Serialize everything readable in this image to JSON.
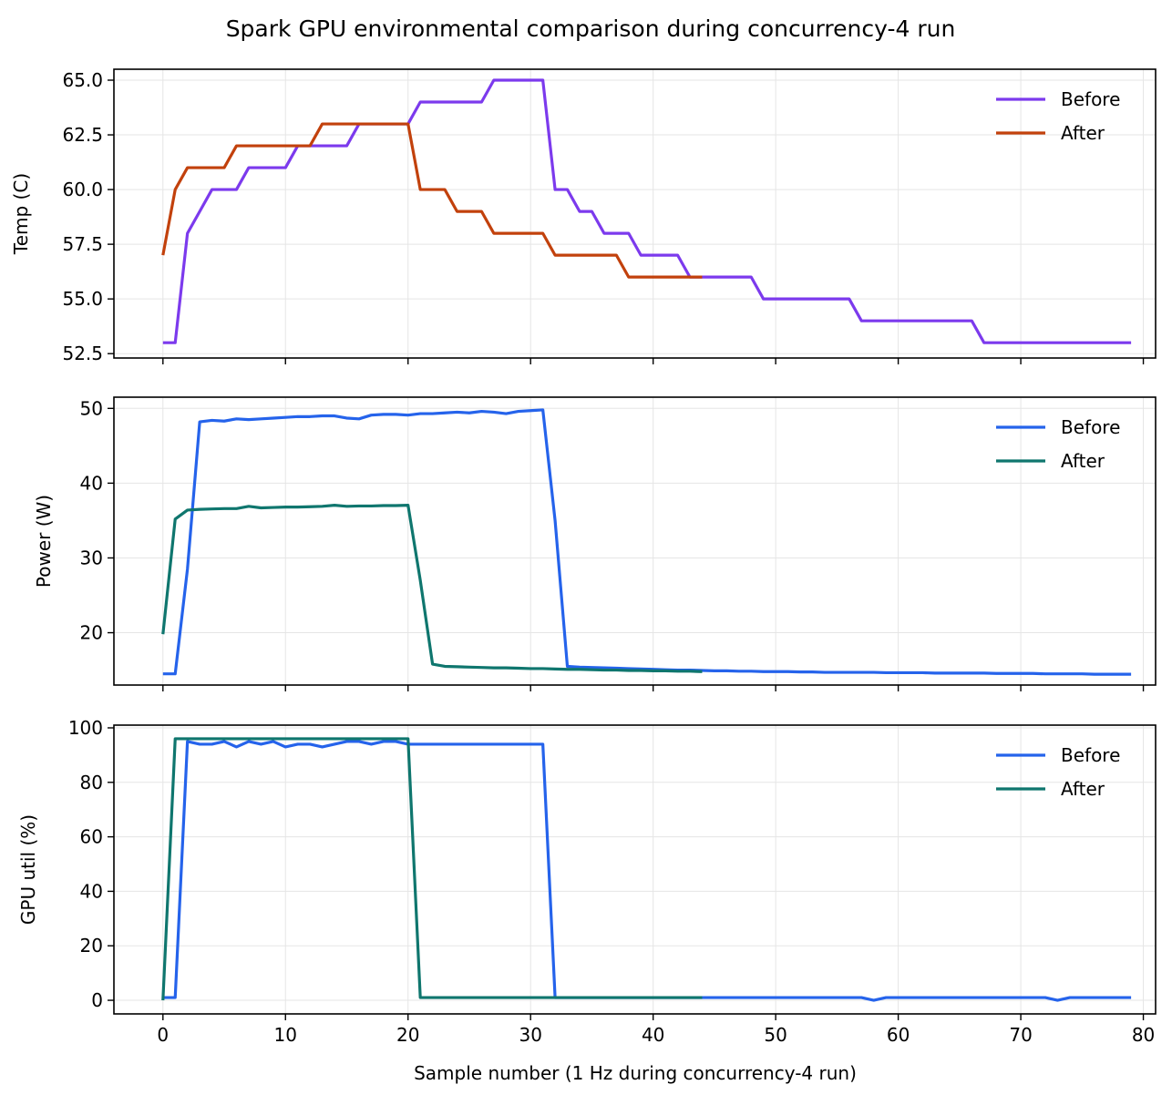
{
  "chart_data": {
    "title": "Spark GPU environmental comparison during concurrency-4 run",
    "xlabel": "Sample number (1 Hz during concurrency-4 run)",
    "type": "line",
    "grid": true,
    "xlim": [
      -4,
      81
    ],
    "xticks": [
      0,
      10,
      20,
      30,
      40,
      50,
      60,
      70,
      80
    ],
    "panels": [
      {
        "type": "line",
        "ylabel": "Temp (C)",
        "ylim": [
          52.3,
          65.5
        ],
        "yticks": [
          52.5,
          55.0,
          57.5,
          60.0,
          62.5,
          65.0
        ],
        "yticklabels": [
          "52.5",
          "55.0",
          "57.5",
          "60.0",
          "62.5",
          "65.0"
        ],
        "legend": "top-right",
        "series": [
          {
            "name": "Before",
            "color": "#7c3aed",
            "values": [
              53,
              53,
              58,
              59,
              60,
              60,
              60,
              61,
              61,
              61,
              61,
              62,
              62,
              62,
              62,
              62,
              63,
              63,
              63,
              63,
              63,
              64,
              64,
              64,
              64,
              64,
              64,
              65,
              65,
              65,
              65,
              65,
              60,
              60,
              59,
              59,
              58,
              58,
              58,
              57,
              57,
              57,
              57,
              56,
              56,
              56,
              56,
              56,
              56,
              55,
              55,
              55,
              55,
              55,
              55,
              55,
              55,
              54,
              54,
              54,
              54,
              54,
              54,
              54,
              54,
              54,
              54,
              53,
              53,
              53,
              53,
              53,
              53,
              53,
              53,
              53,
              53,
              53,
              53,
              53
            ]
          },
          {
            "name": "After",
            "color": "#c2410c",
            "values": [
              57,
              60,
              61,
              61,
              61,
              61,
              62,
              62,
              62,
              62,
              62,
              62,
              62,
              63,
              63,
              63,
              63,
              63,
              63,
              63,
              63,
              60,
              60,
              60,
              59,
              59,
              59,
              58,
              58,
              58,
              58,
              58,
              57,
              57,
              57,
              57,
              57,
              57,
              56,
              56,
              56,
              56,
              56,
              56,
              56
            ]
          }
        ]
      },
      {
        "type": "line",
        "ylabel": "Power (W)",
        "ylim": [
          13,
          51.5
        ],
        "yticks": [
          20,
          30,
          40,
          50
        ],
        "yticklabels": [
          "20",
          "30",
          "40",
          "50"
        ],
        "legend": "top-right",
        "series": [
          {
            "name": "Before",
            "color": "#2563eb",
            "values": [
              14.5,
              14.5,
              28.5,
              48.2,
              48.4,
              48.3,
              48.6,
              48.5,
              48.6,
              48.7,
              48.8,
              48.9,
              48.9,
              49.0,
              49.0,
              48.7,
              48.6,
              49.1,
              49.2,
              49.2,
              49.1,
              49.3,
              49.3,
              49.4,
              49.5,
              49.4,
              49.6,
              49.5,
              49.3,
              49.6,
              49.7,
              49.8,
              35.0,
              15.5,
              15.4,
              15.35,
              15.3,
              15.25,
              15.2,
              15.15,
              15.1,
              15.05,
              15.0,
              15.0,
              14.95,
              14.9,
              14.9,
              14.85,
              14.85,
              14.8,
              14.8,
              14.8,
              14.75,
              14.75,
              14.7,
              14.7,
              14.7,
              14.7,
              14.7,
              14.65,
              14.65,
              14.65,
              14.65,
              14.6,
              14.6,
              14.6,
              14.6,
              14.6,
              14.55,
              14.55,
              14.55,
              14.55,
              14.5,
              14.5,
              14.5,
              14.5,
              14.45,
              14.45,
              14.45,
              14.45
            ]
          },
          {
            "name": "After",
            "color": "#0f766e",
            "values": [
              19.8,
              35.2,
              36.4,
              36.5,
              36.55,
              36.6,
              36.6,
              36.9,
              36.7,
              36.75,
              36.8,
              36.8,
              36.85,
              36.9,
              37.05,
              36.9,
              36.95,
              36.95,
              37.0,
              37.0,
              37.05,
              27.0,
              15.8,
              15.5,
              15.45,
              15.4,
              15.35,
              15.3,
              15.3,
              15.25,
              15.2,
              15.2,
              15.15,
              15.1,
              15.1,
              15.05,
              15.0,
              15.0,
              14.95,
              14.95,
              14.9,
              14.9,
              14.85,
              14.85,
              14.8
            ]
          }
        ]
      },
      {
        "type": "line",
        "ylabel": "GPU util (%)",
        "ylim": [
          -5,
          101
        ],
        "yticks": [
          0,
          20,
          40,
          60,
          80,
          100
        ],
        "yticklabels": [
          "0",
          "20",
          "40",
          "60",
          "80",
          "100"
        ],
        "legend": "top-right",
        "series": [
          {
            "name": "Before",
            "color": "#2563eb",
            "values": [
              1,
              1,
              95,
              94,
              94,
              95,
              93,
              95,
              94,
              95,
              93,
              94,
              94,
              93,
              94,
              95,
              95,
              94,
              95,
              95,
              94,
              94,
              94,
              94,
              94,
              94,
              94,
              94,
              94,
              94,
              94,
              94,
              1,
              1,
              1,
              1,
              1,
              1,
              1,
              1,
              1,
              1,
              1,
              1,
              1,
              1,
              1,
              1,
              1,
              1,
              1,
              1,
              1,
              1,
              1,
              1,
              1,
              1,
              0,
              1,
              1,
              1,
              1,
              1,
              1,
              1,
              1,
              1,
              1,
              1,
              1,
              1,
              1,
              0,
              1,
              1,
              1,
              1,
              1,
              1
            ]
          },
          {
            "name": "After",
            "color": "#0f766e",
            "values": [
              0,
              96,
              96,
              96,
              96,
              96,
              96,
              96,
              96,
              96,
              96,
              96,
              96,
              96,
              96,
              96,
              96,
              96,
              96,
              96,
              96,
              1,
              1,
              1,
              1,
              1,
              1,
              1,
              1,
              1,
              1,
              1,
              1,
              1,
              1,
              1,
              1,
              1,
              1,
              1,
              1,
              1,
              1,
              1,
              1
            ]
          }
        ]
      }
    ]
  }
}
